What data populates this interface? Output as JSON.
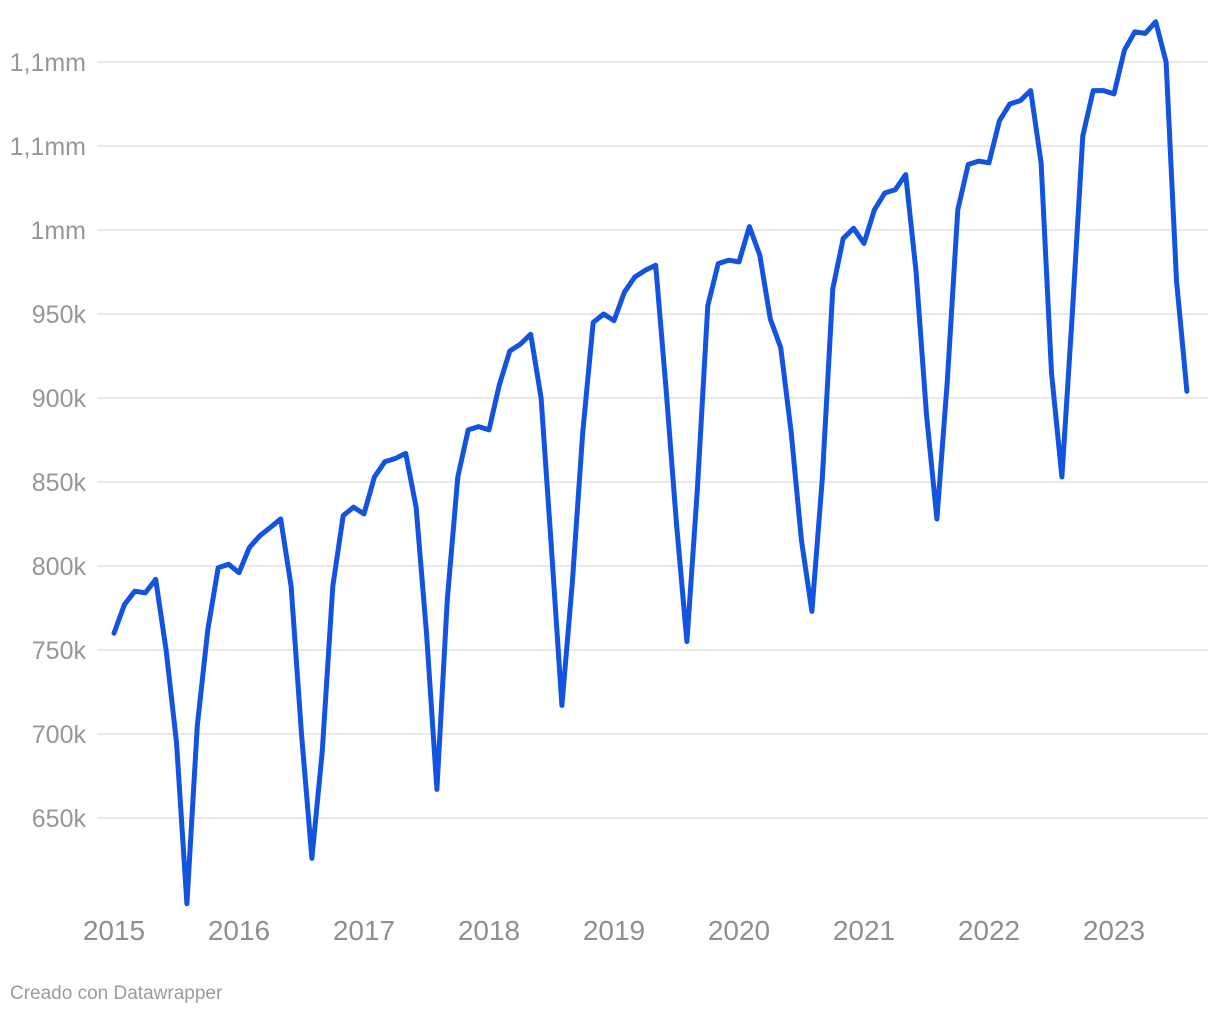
{
  "footer": {
    "credit": "Creado con Datawrapper"
  },
  "chart_data": {
    "type": "line",
    "title": "",
    "frequency": "monthly",
    "start": "2015-01",
    "end": "2023-08",
    "grid": "horizontal",
    "legend": "none",
    "line_color": "#1253e0",
    "grid_color": "#e9e9e9",
    "tick_label_color": "#969696",
    "ylim": [
      600000,
      1130000
    ],
    "y_axis": {
      "ticks": [
        {
          "value": 1100000,
          "label": "1,1mm"
        },
        {
          "value": 1050000,
          "label": "1,1mm"
        },
        {
          "value": 1000000,
          "label": "1mm"
        },
        {
          "value": 950000,
          "label": "950k"
        },
        {
          "value": 900000,
          "label": "900k"
        },
        {
          "value": 850000,
          "label": "850k"
        },
        {
          "value": 800000,
          "label": "800k"
        },
        {
          "value": 750000,
          "label": "750k"
        },
        {
          "value": 700000,
          "label": "700k"
        },
        {
          "value": 650000,
          "label": "650k"
        }
      ]
    },
    "x_axis": {
      "years": [
        "2015",
        "2016",
        "2017",
        "2018",
        "2019",
        "2020",
        "2021",
        "2022",
        "2023"
      ]
    },
    "series": [
      {
        "year": 2015,
        "values": [
          760000,
          777000,
          785000,
          784000,
          792000,
          750000,
          695000,
          599000,
          705000,
          762000,
          799000,
          801000
        ]
      },
      {
        "year": 2016,
        "values": [
          796000,
          811000,
          818000,
          823000,
          828000,
          788000,
          700000,
          626000,
          690000,
          788000,
          830000,
          835000
        ]
      },
      {
        "year": 2017,
        "values": [
          831000,
          853000,
          862000,
          864000,
          867000,
          835000,
          760000,
          667000,
          780000,
          853000,
          881000,
          883000
        ]
      },
      {
        "year": 2018,
        "values": [
          881000,
          908000,
          928000,
          932000,
          938000,
          900000,
          810000,
          717000,
          790000,
          880000,
          945000,
          950000
        ]
      },
      {
        "year": 2019,
        "values": [
          946000,
          963000,
          972000,
          976000,
          979000,
          905000,
          825000,
          755000,
          845000,
          955000,
          980000,
          982000
        ]
      },
      {
        "year": 2020,
        "values": [
          981000,
          1002000,
          985000,
          947000,
          930000,
          880000,
          815000,
          773000,
          852000,
          965000,
          995000,
          1001000
        ]
      },
      {
        "year": 2021,
        "values": [
          992000,
          1012000,
          1022000,
          1024000,
          1033000,
          975000,
          890000,
          828000,
          910000,
          1012000,
          1039000,
          1041000
        ]
      },
      {
        "year": 2022,
        "values": [
          1040000,
          1065000,
          1075000,
          1077000,
          1083000,
          1040000,
          915000,
          853000,
          950000,
          1056000,
          1083000,
          1083000
        ]
      },
      {
        "year": 2023,
        "values": [
          1081000,
          1107000,
          1118000,
          1117000,
          1124000,
          1100000,
          970000,
          904000
        ]
      }
    ]
  }
}
